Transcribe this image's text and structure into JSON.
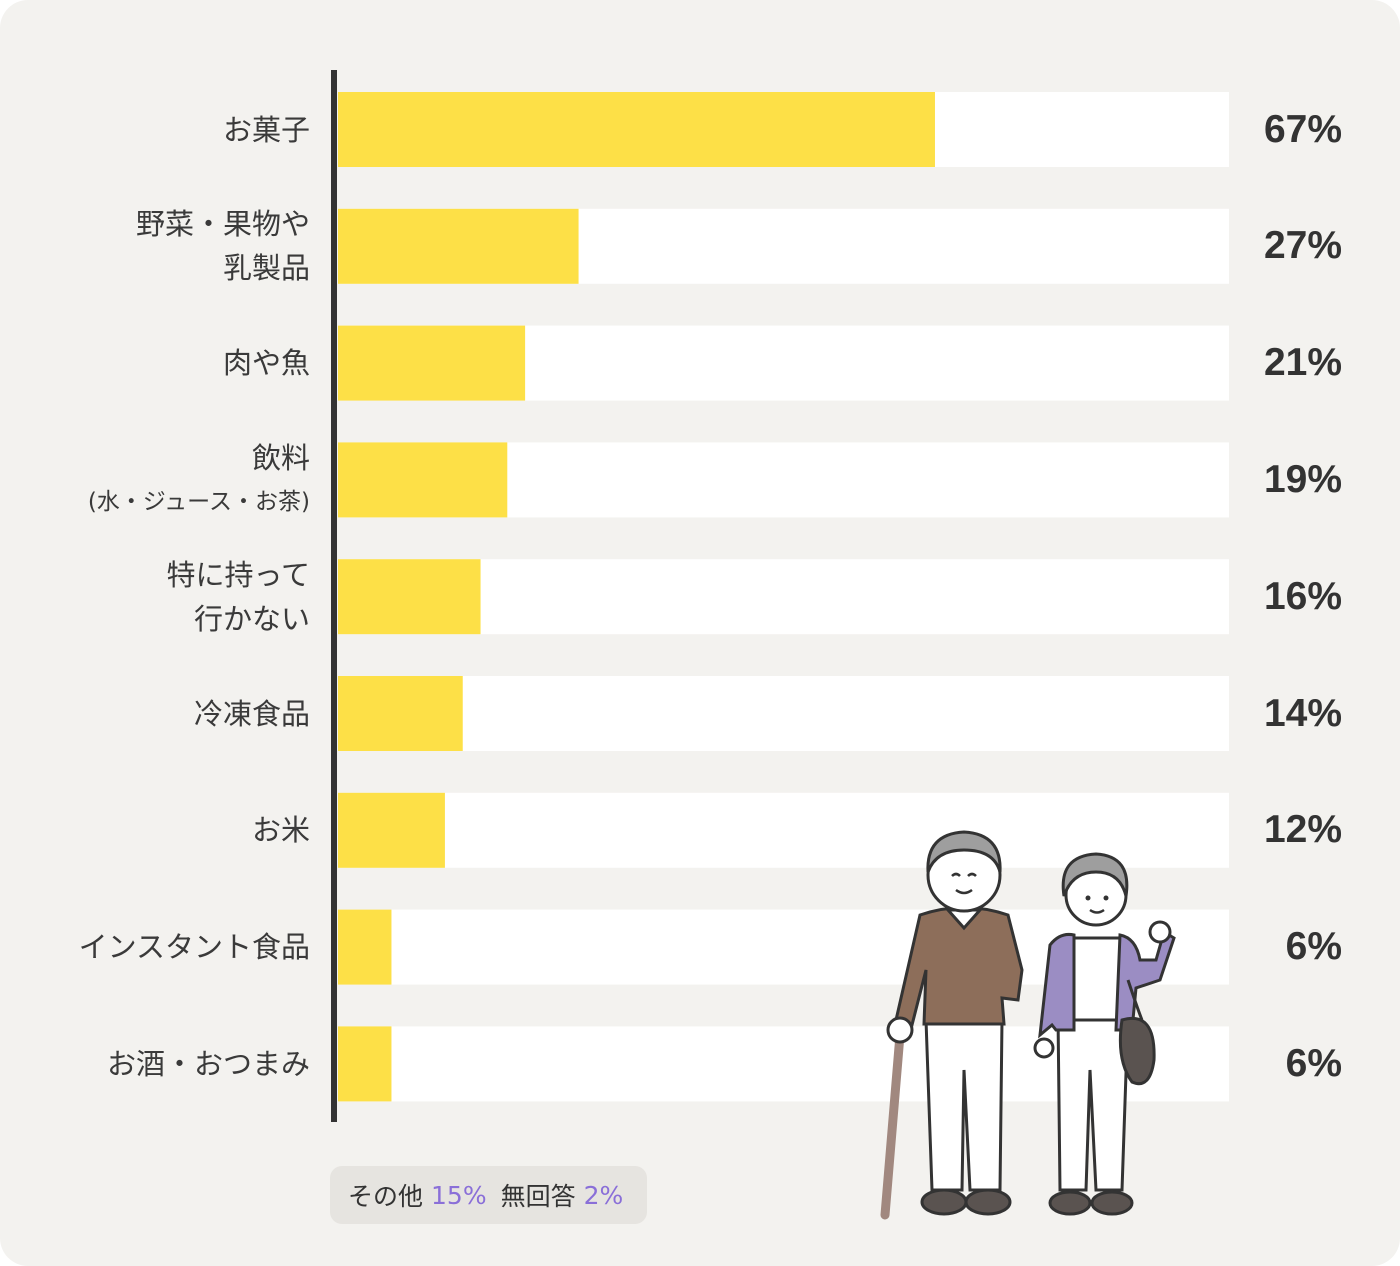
{
  "chart_data": {
    "type": "bar",
    "orientation": "horizontal",
    "categories": [
      [
        "お菓子"
      ],
      [
        "野菜・果物や",
        "乳製品"
      ],
      [
        "肉や魚"
      ],
      [
        "飲料",
        "(水・ジュース・お茶)"
      ],
      [
        "特に持って",
        "行かない"
      ],
      [
        "冷凍食品"
      ],
      [
        "お米"
      ],
      [
        "インスタント食品"
      ],
      [
        "お酒・おつまみ"
      ]
    ],
    "values": [
      67,
      27,
      21,
      19,
      16,
      14,
      12,
      6,
      6
    ],
    "value_labels": [
      "67%",
      "27%",
      "21%",
      "19%",
      "16%",
      "14%",
      "12%",
      "6%",
      "6%"
    ],
    "xlim": [
      0,
      100
    ],
    "grid": false,
    "legend": "none"
  },
  "colors": {
    "bar": "#fde047",
    "track": "#ffffff",
    "axis": "#333333",
    "background": "#f3f2ef",
    "note_highlight": "#8a6fd8"
  },
  "note": {
    "other_label": "その他",
    "other_value": "15%",
    "noanswer_label": "無回答",
    "noanswer_value": "2%"
  },
  "illustration": {
    "icon": "elderly-couple-icon"
  }
}
